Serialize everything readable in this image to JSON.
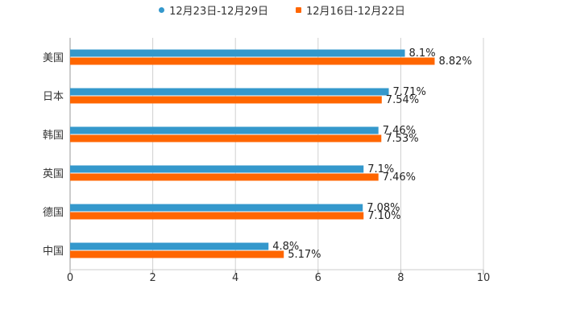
{
  "chart_data": {
    "type": "bar",
    "orientation": "horizontal",
    "title": "",
    "xlabel": "",
    "ylabel": "",
    "xlim": [
      0,
      10
    ],
    "x_ticks": [
      "0",
      "2",
      "4",
      "6",
      "8",
      "10"
    ],
    "grid": true,
    "legend_position": "top-center",
    "categories": [
      "美国",
      "日本",
      "韩国",
      "英国",
      "德国",
      "中国"
    ],
    "series": [
      {
        "name": "12月23日-12月29日",
        "color": "#3498cc",
        "marker": "circle",
        "values": [
          8.1,
          7.71,
          7.46,
          7.1,
          7.08,
          4.8
        ],
        "labels": [
          "8.1%",
          "7.71%",
          "7.46%",
          "7.1%",
          "7.08%",
          "4.8%"
        ]
      },
      {
        "name": "12月16日-12月22日",
        "color": "#ff6600",
        "marker": "square",
        "values": [
          8.82,
          7.54,
          7.53,
          7.46,
          7.1,
          5.17
        ],
        "labels": [
          "8.82%",
          "7.54%",
          "7.53%",
          "7.46%",
          "7.10%",
          "5.17%"
        ]
      }
    ]
  }
}
